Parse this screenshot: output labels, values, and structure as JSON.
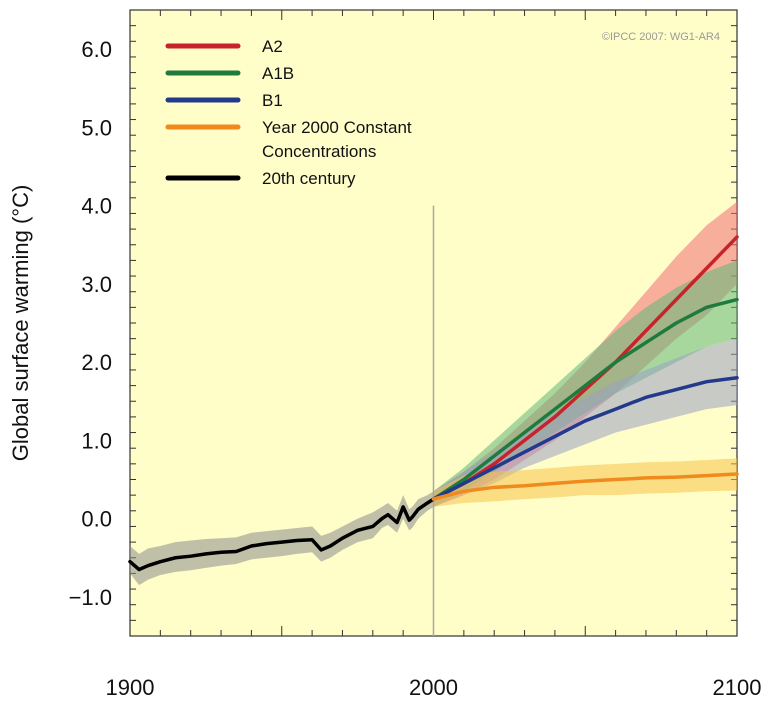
{
  "chart_data": {
    "type": "line",
    "ylabel": "Global surface warming (°C)",
    "credit": "©IPCC 2007: WG1-AR4",
    "xlim": [
      1900,
      2100
    ],
    "ylim": [
      -1.5,
      6.5
    ],
    "xticks": [
      {
        "value": 1900,
        "label": "1900"
      },
      {
        "value": 2000,
        "label": "2000"
      },
      {
        "value": 2100,
        "label": "2100"
      }
    ],
    "yticks": [
      {
        "value": -1.0,
        "label": "−1.0"
      },
      {
        "value": 0.0,
        "label": "0.0"
      },
      {
        "value": 1.0,
        "label": "1.0"
      },
      {
        "value": 2.0,
        "label": "2.0"
      },
      {
        "value": 3.0,
        "label": "3.0"
      },
      {
        "value": 4.0,
        "label": "4.0"
      },
      {
        "value": 5.0,
        "label": "5.0"
      },
      {
        "value": 6.0,
        "label": "6.0"
      }
    ],
    "divider": {
      "x": 2000,
      "y_from": -1.5,
      "y_to": 4.0,
      "color": "#a8a8a8"
    },
    "legend_position": "top-left",
    "legend": [
      {
        "label": "A2",
        "color": "#c8232a"
      },
      {
        "label": "A1B",
        "color": "#1f7a3d"
      },
      {
        "label": "B1",
        "color": "#233a8c"
      },
      {
        "label": "Year 2000 Constant\nConcentrations",
        "color": "#f08a1c"
      },
      {
        "label": "20th century",
        "color": "#000000"
      }
    ],
    "series": [
      {
        "name": "20th century",
        "color": "#000000",
        "band_color": "#8c8c8c",
        "x": [
          1900,
          1903,
          1906,
          1910,
          1915,
          1920,
          1925,
          1930,
          1935,
          1940,
          1945,
          1950,
          1955,
          1960,
          1963,
          1966,
          1970,
          1975,
          1980,
          1983,
          1985,
          1988,
          1990,
          1992,
          1993,
          1995,
          1998,
          2000
        ],
        "y": [
          -0.55,
          -0.65,
          -0.6,
          -0.55,
          -0.5,
          -0.48,
          -0.45,
          -0.43,
          -0.42,
          -0.35,
          -0.32,
          -0.3,
          -0.28,
          -0.27,
          -0.4,
          -0.35,
          -0.25,
          -0.15,
          -0.1,
          0.0,
          0.05,
          -0.05,
          0.15,
          -0.02,
          0.02,
          0.12,
          0.2,
          0.25
        ],
        "lower": [
          -0.7,
          -0.85,
          -0.78,
          -0.72,
          -0.68,
          -0.66,
          -0.63,
          -0.6,
          -0.58,
          -0.52,
          -0.5,
          -0.48,
          -0.45,
          -0.43,
          -0.55,
          -0.5,
          -0.4,
          -0.3,
          -0.25,
          -0.12,
          -0.08,
          -0.18,
          0.0,
          -0.15,
          -0.12,
          0.0,
          0.1,
          0.15
        ],
        "upper": [
          -0.35,
          -0.45,
          -0.38,
          -0.35,
          -0.3,
          -0.28,
          -0.26,
          -0.25,
          -0.24,
          -0.18,
          -0.16,
          -0.14,
          -0.12,
          -0.1,
          -0.22,
          -0.18,
          -0.1,
          0.0,
          0.08,
          0.15,
          0.2,
          0.1,
          0.3,
          0.12,
          0.15,
          0.25,
          0.3,
          0.35
        ]
      },
      {
        "name": "A2",
        "color": "#c8232a",
        "band_color": "#f07078",
        "x": [
          2000,
          2010,
          2020,
          2030,
          2040,
          2050,
          2060,
          2070,
          2080,
          2090,
          2100
        ],
        "y": [
          0.25,
          0.45,
          0.7,
          1.0,
          1.3,
          1.65,
          2.0,
          2.4,
          2.8,
          3.2,
          3.6
        ],
        "lower": [
          0.15,
          0.3,
          0.5,
          0.75,
          1.0,
          1.3,
          1.6,
          1.95,
          2.3,
          2.6,
          3.0
        ],
        "upper": [
          0.35,
          0.6,
          0.9,
          1.25,
          1.6,
          2.0,
          2.45,
          2.9,
          3.35,
          3.75,
          4.05
        ]
      },
      {
        "name": "A1B",
        "color": "#1f7a3d",
        "band_color": "#5fb879",
        "x": [
          2000,
          2010,
          2020,
          2030,
          2040,
          2050,
          2060,
          2070,
          2080,
          2090,
          2100
        ],
        "y": [
          0.25,
          0.5,
          0.8,
          1.1,
          1.4,
          1.7,
          2.0,
          2.25,
          2.5,
          2.7,
          2.8
        ],
        "lower": [
          0.15,
          0.35,
          0.6,
          0.85,
          1.1,
          1.35,
          1.6,
          1.8,
          2.0,
          2.2,
          2.3
        ],
        "upper": [
          0.35,
          0.65,
          1.0,
          1.35,
          1.7,
          2.05,
          2.4,
          2.7,
          2.95,
          3.15,
          3.3
        ]
      },
      {
        "name": "B1",
        "color": "#233a8c",
        "band_color": "#9aa0c4",
        "x": [
          2000,
          2010,
          2020,
          2030,
          2040,
          2050,
          2060,
          2070,
          2080,
          2090,
          2100
        ],
        "y": [
          0.25,
          0.45,
          0.65,
          0.85,
          1.05,
          1.25,
          1.4,
          1.55,
          1.65,
          1.75,
          1.8
        ],
        "lower": [
          0.15,
          0.3,
          0.45,
          0.65,
          0.8,
          0.95,
          1.1,
          1.2,
          1.3,
          1.4,
          1.45
        ],
        "upper": [
          0.35,
          0.6,
          0.85,
          1.1,
          1.35,
          1.55,
          1.75,
          1.9,
          2.05,
          2.2,
          2.3
        ]
      },
      {
        "name": "Year 2000 Constant Concentrations",
        "color": "#f08a1c",
        "band_color": "#f7c54c",
        "x": [
          2000,
          2010,
          2020,
          2030,
          2040,
          2050,
          2060,
          2070,
          2080,
          2090,
          2100
        ],
        "y": [
          0.25,
          0.35,
          0.4,
          0.42,
          0.45,
          0.48,
          0.5,
          0.52,
          0.53,
          0.55,
          0.57
        ],
        "lower": [
          0.15,
          0.2,
          0.22,
          0.25,
          0.27,
          0.3,
          0.3,
          0.32,
          0.33,
          0.35,
          0.36
        ],
        "upper": [
          0.35,
          0.55,
          0.6,
          0.62,
          0.65,
          0.68,
          0.7,
          0.72,
          0.73,
          0.75,
          0.77
        ]
      }
    ]
  }
}
